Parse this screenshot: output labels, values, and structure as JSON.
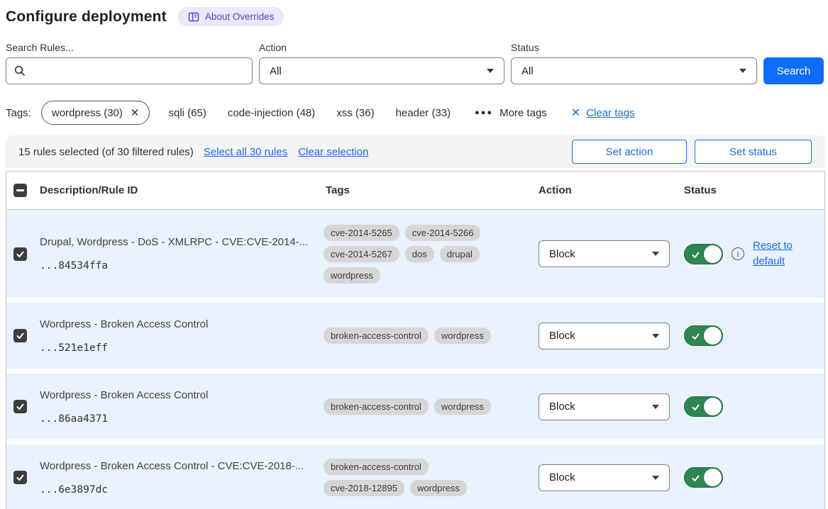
{
  "page": {
    "title": "Configure deployment",
    "about_badge": "About Overrides"
  },
  "filters": {
    "search_label": "Search Rules...",
    "search_value": "",
    "action_label": "Action",
    "action_value": "All",
    "status_label": "Status",
    "status_value": "All",
    "search_button": "Search"
  },
  "tags_bar": {
    "label": "Tags:",
    "selected_tag": "wordpress (30)",
    "tags": [
      "sqli (65)",
      "code-injection (48)",
      "xss (36)",
      "header (33)"
    ],
    "more_tags": "More tags",
    "clear_tags": "Clear tags"
  },
  "selection_bar": {
    "summary": "15 rules selected (of 30 filtered rules)",
    "select_all": "Select all 30 rules",
    "clear_selection": "Clear selection",
    "set_action": "Set action",
    "set_status": "Set status"
  },
  "table": {
    "headers": {
      "description": "Description/Rule ID",
      "tags": "Tags",
      "action": "Action",
      "status": "Status"
    },
    "rows": [
      {
        "description": "Drupal, Wordpress - DoS - XMLRPC - CVE:CVE-2014-...",
        "rule_id": "...84534ffa",
        "tags": [
          "cve-2014-5265",
          "cve-2014-5266",
          "cve-2014-5267",
          "dos",
          "drupal",
          "wordpress"
        ],
        "action": "Block",
        "checked": true,
        "enabled": true,
        "has_reset": true,
        "reset_label": "Reset to default"
      },
      {
        "description": "Wordpress - Broken Access Control",
        "rule_id": "...521e1eff",
        "tags": [
          "broken-access-control",
          "wordpress"
        ],
        "action": "Block",
        "checked": true,
        "enabled": true,
        "has_reset": false
      },
      {
        "description": "Wordpress - Broken Access Control",
        "rule_id": "...86aa4371",
        "tags": [
          "broken-access-control",
          "wordpress"
        ],
        "action": "Block",
        "checked": true,
        "enabled": true,
        "has_reset": false
      },
      {
        "description": "Wordpress - Broken Access Control - CVE:CVE-2018-...",
        "rule_id": "...6e3897dc",
        "tags": [
          "broken-access-control",
          "cve-2018-12895",
          "wordpress"
        ],
        "action": "Block",
        "checked": true,
        "enabled": true,
        "has_reset": false
      }
    ]
  },
  "colors": {
    "accent_blue": "#0d6efd",
    "link_blue": "#1a6ce0",
    "toggle_green": "#2e8650",
    "selected_row_bg": "#e9f1fc",
    "badge_bg": "#eae8fb",
    "badge_text": "#4b48c8",
    "tag_pill_bg": "#d6d6d6"
  }
}
